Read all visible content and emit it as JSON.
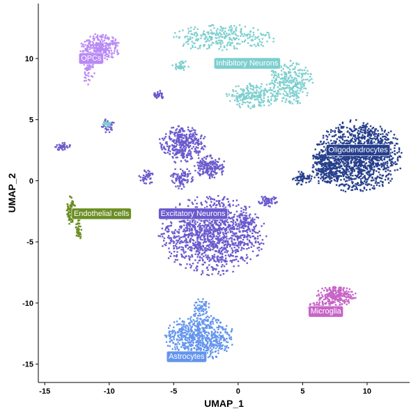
{
  "chart_data": {
    "type": "scatter",
    "title": "",
    "xlabel": "UMAP_1",
    "ylabel": "UMAP_2",
    "xlim": [
      -15.5,
      13.3
    ],
    "ylim": [
      -16.5,
      14.5
    ],
    "x_ticks": [
      -15,
      -10,
      -5,
      0,
      5,
      10
    ],
    "y_ticks": [
      -15,
      -10,
      -5,
      0,
      5,
      10
    ],
    "x_tick_labels": [
      "-15",
      "-10",
      "-5",
      "0",
      "5",
      "10"
    ],
    "y_tick_labels": [
      "-15",
      "-10",
      "-5",
      "0",
      "5",
      "10"
    ],
    "grid": false,
    "legend": "none",
    "clusters": [
      {
        "name": "Oligodendrocytes",
        "color": "#263F8C",
        "label_pos": [
          9.3,
          2.5
        ],
        "blobs": [
          {
            "cx": 9.3,
            "cy": 2.0,
            "rx": 3.5,
            "ry": 3.0,
            "n": 1400
          },
          {
            "cx": 6.8,
            "cy": 1.0,
            "rx": 1.1,
            "ry": 1.4,
            "n": 160
          },
          {
            "cx": 5.0,
            "cy": 0.2,
            "rx": 0.8,
            "ry": 0.6,
            "n": 60
          }
        ]
      },
      {
        "name": "Excitatory Neurons",
        "color": "#6A5ACD",
        "label_pos": [
          -3.5,
          -2.7
        ],
        "blobs": [
          {
            "cx": -2.0,
            "cy": -4.5,
            "rx": 4.2,
            "ry": 3.3,
            "n": 1200
          },
          {
            "cx": -4.3,
            "cy": 3.0,
            "rx": 1.9,
            "ry": 1.6,
            "n": 350
          },
          {
            "cx": -2.2,
            "cy": 1.1,
            "rx": 1.3,
            "ry": 1.0,
            "n": 180
          },
          {
            "cx": -4.4,
            "cy": 0.2,
            "rx": 0.9,
            "ry": 0.9,
            "n": 90
          },
          {
            "cx": -7.1,
            "cy": 0.3,
            "rx": 0.6,
            "ry": 0.6,
            "n": 45
          },
          {
            "cx": -10.1,
            "cy": 4.5,
            "rx": 0.5,
            "ry": 0.6,
            "n": 40
          },
          {
            "cx": -13.6,
            "cy": 2.8,
            "rx": 0.6,
            "ry": 0.4,
            "n": 40
          },
          {
            "cx": -6.2,
            "cy": 7.0,
            "rx": 0.5,
            "ry": 0.4,
            "n": 30
          },
          {
            "cx": 2.3,
            "cy": -1.7,
            "rx": 0.8,
            "ry": 0.5,
            "n": 60
          },
          {
            "cx": 0.5,
            "cy": -3.5,
            "rx": 0.8,
            "ry": 1.0,
            "n": 70
          }
        ]
      },
      {
        "name": "Inhibitory Neurons",
        "color": "#7ECFCF",
        "label_pos": [
          0.7,
          9.6
        ],
        "blobs": [
          {
            "cx": -1.2,
            "cy": 11.7,
            "rx": 4.3,
            "ry": 1.1,
            "n": 280
          },
          {
            "cx": 4.0,
            "cy": 8.0,
            "rx": 1.8,
            "ry": 1.9,
            "n": 300
          },
          {
            "cx": 1.0,
            "cy": 7.0,
            "rx": 2.2,
            "ry": 1.1,
            "n": 200
          },
          {
            "cx": -4.4,
            "cy": 9.4,
            "rx": 0.7,
            "ry": 0.5,
            "n": 35
          },
          {
            "cx": -10.2,
            "cy": 4.7,
            "rx": 0.4,
            "ry": 0.3,
            "n": 20
          }
        ]
      },
      {
        "name": "OPCs",
        "color": "#B98AF5",
        "label_pos": [
          -11.4,
          10.0
        ],
        "blobs": [
          {
            "cx": -10.7,
            "cy": 10.9,
            "rx": 1.6,
            "ry": 1.2,
            "n": 280
          },
          {
            "cx": -11.6,
            "cy": 9.2,
            "rx": 0.5,
            "ry": 1.5,
            "n": 60
          }
        ]
      },
      {
        "name": "Endothelial cells",
        "color": "#6B8E23",
        "label_pos": [
          -10.6,
          -2.7
        ],
        "blobs": [
          {
            "cx": -13.0,
            "cy": -2.4,
            "rx": 0.4,
            "ry": 1.2,
            "n": 90
          },
          {
            "cx": -12.4,
            "cy": -4.0,
            "rx": 0.25,
            "ry": 1.0,
            "n": 40
          }
        ]
      },
      {
        "name": "Microglia",
        "color": "#C765C7",
        "label_pos": [
          6.8,
          -10.7
        ],
        "blobs": [
          {
            "cx": 7.6,
            "cy": -9.4,
            "rx": 1.6,
            "ry": 0.9,
            "n": 240
          },
          {
            "cx": 6.3,
            "cy": -10.3,
            "rx": 0.9,
            "ry": 0.5,
            "n": 60
          }
        ]
      },
      {
        "name": "Astrocytes",
        "color": "#6495ED",
        "label_pos": [
          -4.0,
          -14.4
        ],
        "blobs": [
          {
            "cx": -3.0,
            "cy": -12.8,
            "rx": 2.7,
            "ry": 1.9,
            "n": 650
          },
          {
            "cx": -2.8,
            "cy": -10.5,
            "rx": 0.7,
            "ry": 1.0,
            "n": 60
          }
        ]
      }
    ]
  }
}
